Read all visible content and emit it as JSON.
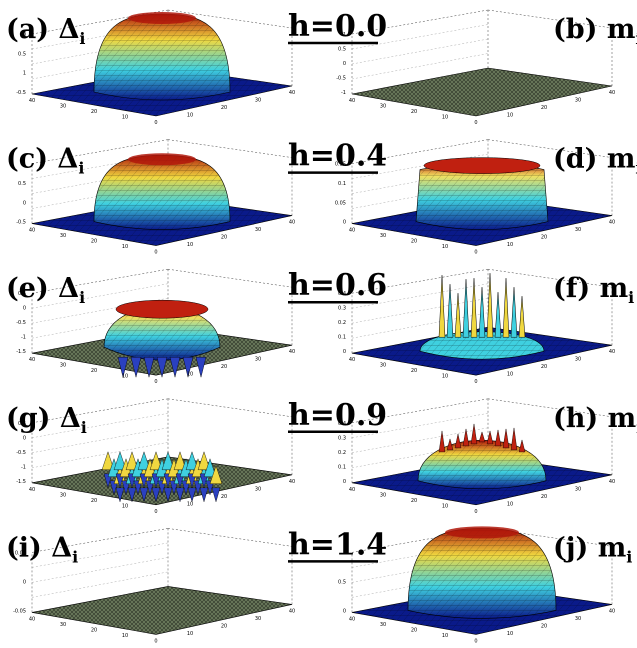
{
  "rows": [
    {
      "field_label": "h=0.0",
      "left": {
        "label": "(a) Δ",
        "sub": "i",
        "z_ticks": [
          "0",
          "0.5",
          "1",
          "-0.5"
        ],
        "xy_ticks": [
          "40",
          "30",
          "20",
          "10",
          "0",
          "10",
          "20",
          "30",
          "40"
        ]
      },
      "right": {
        "label": "(b) m",
        "sub": "i",
        "z_ticks": [
          "1",
          "0.5",
          "0",
          "-0.5",
          "-1"
        ],
        "xy_ticks": [
          "40",
          "30",
          "20",
          "10",
          "0",
          "10",
          "20",
          "30",
          "40"
        ]
      }
    },
    {
      "field_label": "h=0.4",
      "left": {
        "label": "(c) Δ",
        "sub": "i",
        "z_ticks": [
          "1",
          "0.5",
          "0",
          "-0.5"
        ],
        "xy_ticks": [
          "40",
          "30",
          "20",
          "10",
          "0",
          "10",
          "20",
          "30",
          "40"
        ]
      },
      "right": {
        "label": "(d) m",
        "sub": "i",
        "z_ticks": [
          "0.15",
          "0.1",
          "0.05",
          "0"
        ],
        "xy_ticks": [
          "40",
          "30",
          "20",
          "10",
          "0",
          "10",
          "20",
          "30",
          "40"
        ]
      }
    },
    {
      "field_label": "h=0.6",
      "left": {
        "label": "(e) Δ",
        "sub": "i",
        "z_ticks": [
          "0.5",
          "0",
          "-0.5",
          "-1",
          "-1.5"
        ],
        "xy_ticks": [
          "40",
          "30",
          "20",
          "10",
          "0",
          "10",
          "20",
          "30",
          "40"
        ]
      },
      "right": {
        "label": "(f) m",
        "sub": "i",
        "z_ticks": [
          "0.4",
          "0.3",
          "0.2",
          "0.1",
          "0"
        ],
        "xy_ticks": [
          "40",
          "30",
          "20",
          "10",
          "0",
          "10",
          "20",
          "30",
          "40"
        ]
      }
    },
    {
      "field_label": "h=0.9",
      "left": {
        "label": "(g) Δ",
        "sub": "i",
        "z_ticks": [
          "0.5",
          "0",
          "-0.5",
          "-1",
          "-1.5"
        ],
        "xy_ticks": [
          "40",
          "30",
          "20",
          "10",
          "0",
          "10",
          "20",
          "30",
          "40"
        ]
      },
      "right": {
        "label": "(h) m",
        "sub": "i",
        "z_ticks": [
          "0.4",
          "0.3",
          "0.2",
          "0.1",
          "0"
        ],
        "xy_ticks": [
          "40",
          "30",
          "20",
          "10",
          "0",
          "10",
          "20",
          "30",
          "40"
        ]
      }
    },
    {
      "field_label": "h=1.4",
      "left": {
        "label": "(i) Δ",
        "sub": "i",
        "z_ticks": [
          "0.05",
          "0",
          "-0.05"
        ],
        "xy_ticks": [
          "40",
          "30",
          "20",
          "10",
          "0",
          "10",
          "20",
          "30",
          "40"
        ]
      },
      "right": {
        "label": "(j) m",
        "sub": "i",
        "z_ticks": [
          "1",
          "0.5",
          "0"
        ],
        "xy_ticks": [
          "40",
          "30",
          "20",
          "10",
          "0",
          "10",
          "20",
          "30",
          "40"
        ]
      }
    }
  ],
  "colors": {
    "surface_low": "#0a1a8a",
    "surface_mid": "#3fd0e0",
    "surface_high": "#f0d840",
    "surface_peak": "#b0180a",
    "flat_plane": "#6b7a5c",
    "mesh_line": "#000000"
  },
  "surfaces": [
    {
      "panel": "a",
      "kind": "dome",
      "amp": 1.0
    },
    {
      "panel": "b",
      "kind": "flat",
      "amp": 0.0
    },
    {
      "panel": "c",
      "kind": "dome",
      "amp": 0.85
    },
    {
      "panel": "d",
      "kind": "ring",
      "amp": 0.6
    },
    {
      "panel": "e",
      "kind": "ring-dome",
      "amp": 0.7
    },
    {
      "panel": "f",
      "kind": "spikes",
      "amp": 0.9
    },
    {
      "panel": "g",
      "kind": "bumps",
      "amp": 0.5
    },
    {
      "panel": "h",
      "kind": "spiky-dome",
      "amp": 0.8
    },
    {
      "panel": "i",
      "kind": "flat",
      "amp": 0.0
    },
    {
      "panel": "j",
      "kind": "dome-tall",
      "amp": 1.0
    }
  ]
}
